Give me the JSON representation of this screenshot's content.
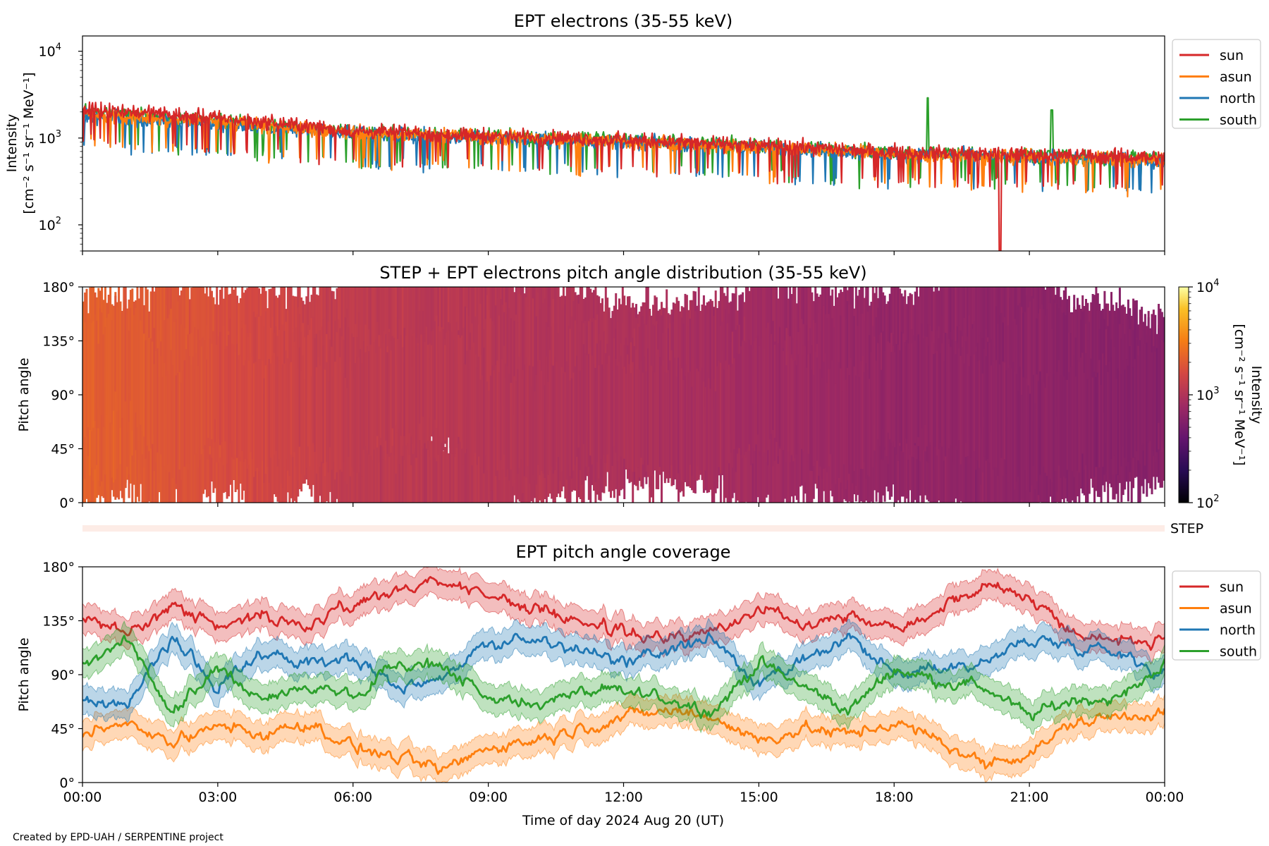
{
  "figure": {
    "credit": "Created by EPD-UAH / SERPENTINE project",
    "xlabel": "Time of day 2024 Aug 20 (UT)",
    "xticks": [
      "00:00",
      "03:00",
      "06:00",
      "09:00",
      "12:00",
      "15:00",
      "18:00",
      "21:00",
      "00:00"
    ]
  },
  "colors": {
    "sun": "#d62728",
    "asun": "#ff7f0e",
    "north": "#1f77b4",
    "south": "#2ca02c"
  },
  "chart_data": [
    {
      "type": "line",
      "title": "EPT electrons (35-55 keV)",
      "ylabel_line1": "Intensity",
      "ylabel_line2": "[cm⁻² s⁻¹ sr⁻¹ MeV⁻¹]",
      "yscale": "log",
      "ylim": [
        50,
        15000
      ],
      "yticks": [
        "10",
        "10",
        "10"
      ],
      "ytick_exponents": [
        "4",
        "3",
        "2"
      ],
      "ytick_values": [
        10000,
        1000,
        100
      ],
      "xlim_hours": [
        0,
        24
      ],
      "legend": [
        "sun",
        "asun",
        "north",
        "south"
      ],
      "legend_position": "outside-right-top",
      "series": [
        {
          "name": "sun",
          "trend_hours": [
            0,
            6,
            12,
            18,
            24
          ],
          "trend_values": [
            2200,
            1200,
            950,
            700,
            600
          ]
        },
        {
          "name": "asun",
          "trend_hours": [
            0,
            6,
            12,
            18,
            24
          ],
          "trend_values": [
            1900,
            1150,
            900,
            650,
            550
          ]
        },
        {
          "name": "north",
          "trend_hours": [
            0,
            6,
            12,
            18,
            24
          ],
          "trend_values": [
            1800,
            1100,
            900,
            650,
            550
          ]
        },
        {
          "name": "south",
          "trend_hours": [
            0,
            6,
            12,
            18,
            24
          ],
          "trend_values": [
            2000,
            1150,
            950,
            680,
            580
          ]
        }
      ],
      "annotations": [
        {
          "label": "south spike",
          "hour": 18.75,
          "value": 2900
        },
        {
          "label": "south spike",
          "hour": 21.5,
          "value": 2100
        },
        {
          "label": "sun dip",
          "hour": 20.35,
          "value": 50
        }
      ]
    },
    {
      "type": "heatmap",
      "title": "STEP + EPT electrons pitch angle distribution (35-55 keV)",
      "ylabel": "Pitch angle",
      "ylim": [
        0,
        180
      ],
      "yticks": [
        "180°",
        "135°",
        "90°",
        "45°",
        "0°"
      ],
      "ytick_values": [
        180,
        135,
        90,
        45,
        0
      ],
      "xlim_hours": [
        0,
        24
      ],
      "colorbar": {
        "label_line1": "Intensity",
        "label_line2": "[cm⁻² s⁻¹ sr⁻¹ MeV⁻¹]",
        "scale": "log",
        "range": [
          100,
          10000
        ],
        "ticks": [
          "10",
          "10",
          "10"
        ],
        "tick_exponents": [
          "4",
          "3",
          "2"
        ],
        "tick_values": [
          10000,
          1000,
          100
        ],
        "colormap": "inferno"
      },
      "intensity_trend_hours": [
        0,
        6,
        12,
        18,
        24
      ],
      "intensity_trend_values": [
        2200,
        1200,
        950,
        700,
        600
      ]
    },
    {
      "type": "bar",
      "label": "STEP",
      "description_color": "#fdece6"
    },
    {
      "type": "line",
      "title": "EPT pitch angle coverage",
      "ylabel": "Pitch angle",
      "ylim": [
        0,
        180
      ],
      "yticks": [
        "180°",
        "135°",
        "90°",
        "45°",
        "0°"
      ],
      "ytick_values": [
        180,
        135,
        90,
        45,
        0
      ],
      "xlim_hours": [
        0,
        24
      ],
      "legend": [
        "sun",
        "asun",
        "north",
        "south"
      ],
      "legend_position": "outside-right-top",
      "band_halfwidth_deg": 12,
      "series": [
        {
          "name": "sun",
          "x_hours": [
            0,
            1,
            2,
            3,
            4,
            5,
            6,
            7,
            8,
            9,
            10,
            11,
            12,
            13,
            14,
            15,
            16,
            17,
            18,
            19,
            20,
            21,
            22,
            23,
            24
          ],
          "values": [
            135,
            125,
            150,
            130,
            140,
            130,
            150,
            160,
            170,
            155,
            145,
            135,
            125,
            120,
            125,
            145,
            135,
            140,
            130,
            145,
            165,
            155,
            125,
            120,
            115
          ]
        },
        {
          "name": "asun",
          "x_hours": [
            0,
            1,
            2,
            3,
            4,
            5,
            6,
            7,
            8,
            9,
            10,
            11,
            12,
            13,
            14,
            15,
            16,
            17,
            18,
            19,
            20,
            21,
            22,
            23,
            24
          ],
          "values": [
            40,
            50,
            30,
            50,
            40,
            50,
            30,
            20,
            10,
            30,
            35,
            45,
            55,
            60,
            55,
            35,
            45,
            40,
            50,
            35,
            15,
            25,
            50,
            55,
            60
          ]
        },
        {
          "name": "north",
          "x_hours": [
            0,
            1,
            2,
            3,
            4,
            5,
            6,
            7,
            8,
            9,
            10,
            11,
            12,
            13,
            14,
            15,
            16,
            17,
            18,
            19,
            20,
            21,
            22,
            23,
            24
          ],
          "values": [
            70,
            60,
            120,
            80,
            110,
            100,
            105,
            80,
            90,
            115,
            120,
            110,
            100,
            110,
            120,
            80,
            100,
            120,
            90,
            95,
            100,
            120,
            115,
            110,
            90
          ]
        },
        {
          "name": "south",
          "x_hours": [
            0,
            1,
            2,
            3,
            4,
            5,
            6,
            7,
            8,
            9,
            10,
            11,
            12,
            13,
            14,
            15,
            16,
            17,
            18,
            19,
            20,
            21,
            22,
            23,
            24
          ],
          "values": [
            100,
            120,
            60,
            95,
            70,
            80,
            70,
            100,
            95,
            70,
            65,
            75,
            75,
            70,
            60,
            100,
            80,
            60,
            95,
            85,
            80,
            55,
            70,
            70,
            100
          ]
        }
      ]
    }
  ]
}
